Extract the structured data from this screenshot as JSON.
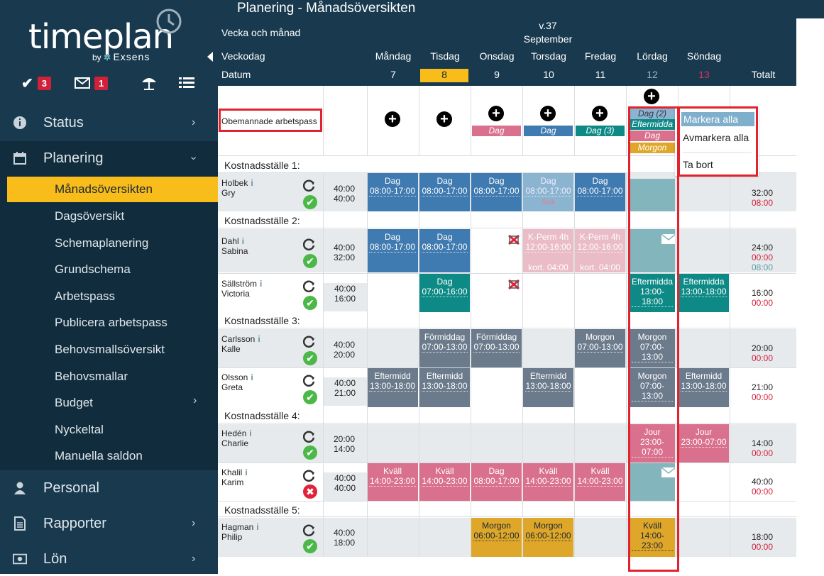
{
  "brand": {
    "name": "timeplan",
    "by": "by",
    "company": "Exsens"
  },
  "header_icons": {
    "tasks_count": "3",
    "messages_count": "1"
  },
  "nav": {
    "status": "Status",
    "planering": "Planering",
    "planering_sub": [
      "Månadsöversikten",
      "Dagsöversikt",
      "Schemaplanering",
      "Grundschema",
      "Arbetspass",
      "Publicera arbetspass",
      "Behovsmallsöversikt",
      "Behovsmallar",
      "Budget",
      "Nyckeltal",
      "Manuella saldon"
    ],
    "personal": "Personal",
    "rapporter": "Rapporter",
    "lon": "Lön"
  },
  "page_title": "Planering - Månadsöversikten",
  "calendar": {
    "week_month_label": "Vecka och månad",
    "week": "v.37",
    "month": "September",
    "weekday_label": "Veckodag",
    "date_label": "Datum",
    "days": [
      "Måndag",
      "Tisdag",
      "Onsdag",
      "Torsdag",
      "Fredag",
      "Lördag",
      "Söndag"
    ],
    "dates": [
      "7",
      "8",
      "9",
      "10",
      "11",
      "12",
      "13"
    ],
    "total_label": "Totalt"
  },
  "unmanned": {
    "label": "Obemannade arbetspass",
    "tags": {
      "wed": "Dag",
      "thu": "Dag",
      "fri": "Dag (3)",
      "sat": [
        "Dag (2)",
        "Eftermidda",
        "Dag",
        "Morgon"
      ]
    }
  },
  "context_menu": {
    "select_all": "Markera alla",
    "deselect_all": "Avmarkera alla",
    "remove": "Ta bort"
  },
  "sections": [
    "Kostnadsställe 1:",
    "Kostnadsställe 2:",
    "Kostnadsställe 3:",
    "Kostnadsställe 4:",
    "Kostnadsställe 5:"
  ],
  "employees": {
    "holbek": {
      "last": "Holbek",
      "first": "Gry",
      "h1": "40:00",
      "h2": "40:00",
      "t1": "32:00",
      "t2": "08:00"
    },
    "dahl": {
      "last": "Dahl",
      "first": "Sabina",
      "h1": "40:00",
      "h2": "32:00",
      "t1": "24:00",
      "t2": "00:00",
      "t3": "08:00"
    },
    "sallstrom": {
      "last": "Sällström",
      "first": "Victoria",
      "h1": "40:00",
      "h2": "16:00",
      "t1": "16:00",
      "t2": "00:00"
    },
    "carlsson": {
      "last": "Carlsson",
      "first": "Kalle",
      "h1": "40:00",
      "h2": "20:00",
      "t1": "20:00",
      "t2": "00:00"
    },
    "olsson": {
      "last": "Olsson",
      "first": "Greta",
      "h1": "40:00",
      "h2": "21:00",
      "t1": "21:00",
      "t2": "00:00"
    },
    "heden": {
      "last": "Hedén",
      "first": "Charlie",
      "h1": "20:00",
      "h2": "14:00",
      "t1": "14:00",
      "t2": "00:00"
    },
    "khalil": {
      "last": "Khalil",
      "first": "Karim",
      "h1": "40:00",
      "h2": "40:00",
      "t1": "40:00",
      "t2": "00:00"
    },
    "hagman": {
      "last": "Hagman",
      "first": "Philip",
      "h1": "40:00",
      "h2": "18:00",
      "t1": "18:00",
      "t2": "00:00"
    }
  },
  "shifts": {
    "dag": "Dag",
    "t0817": "08:00-17:00",
    "sick": "Sick",
    "kperm": "K-Perm 4h",
    "t1216": "12:00-16:00",
    "kort": "kort. 04:00",
    "t0716": "07:00-16:00",
    "eftermidda": "Eftermidda",
    "t1318": "13:00-18:00",
    "formiddag": "Förmiddag",
    "t0713": "07:00-13:00",
    "morgon": "Morgon",
    "eftermidd": "Eftermidd",
    "jour": "Jour",
    "t2307": "23:00-07:00",
    "kvall": "Kväll",
    "t1423": "14:00-23:00",
    "t0612": "06:00-12:00"
  }
}
